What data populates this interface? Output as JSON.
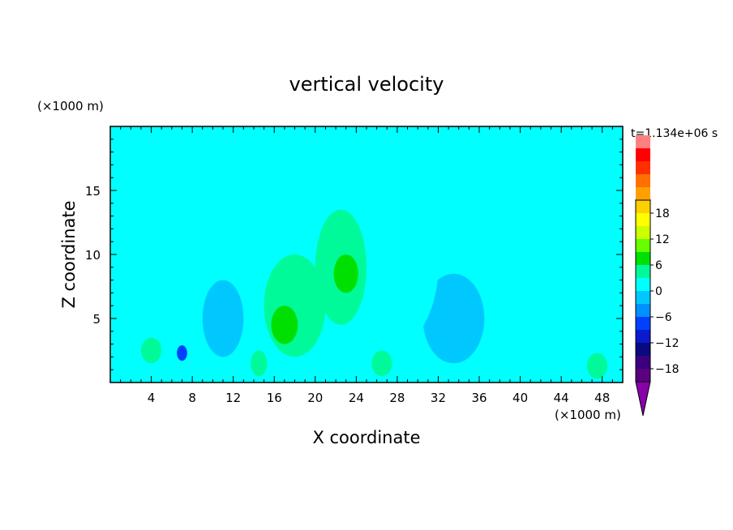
{
  "chart_data": {
    "type": "heatmap",
    "title": "vertical velocity",
    "xlabel": "X coordinate",
    "ylabel": "Z coordinate",
    "x_unit": "(×1000 m)",
    "y_unit": "(×1000 m)",
    "time_label": "t=1.134e+06 s",
    "xlim": [
      0,
      50
    ],
    "ylim": [
      0,
      20
    ],
    "x_ticks": [
      "4",
      "8",
      "12",
      "16",
      "20",
      "24",
      "28",
      "32",
      "36",
      "40",
      "44",
      "48"
    ],
    "y_ticks": [
      "5",
      "10",
      "15"
    ],
    "colorbar": {
      "tick_labels": [
        "18",
        "12",
        "6",
        "0",
        "−6",
        "−12",
        "−18"
      ],
      "tick_values": [
        18,
        12,
        6,
        0,
        -6,
        -12,
        -18
      ],
      "range": [
        -21,
        21
      ],
      "step": 3,
      "colors": [
        "#5a0080",
        "#3a0080",
        "#0a0a80",
        "#0a1acc",
        "#0040ff",
        "#0090ff",
        "#00c8ff",
        "#00ffff",
        "#00fa9a",
        "#00e000",
        "#66ff00",
        "#ccff00",
        "#ffff00",
        "#ffd000",
        "#ffa000",
        "#ff7000",
        "#ff3000",
        "#ff0000",
        "#ff8080"
      ],
      "over_color": "#f6a6a6",
      "under_color": "#8800aa"
    },
    "background_value": 0,
    "features": [
      {
        "x": 24,
        "z": 9,
        "sx": 8,
        "sz": 8,
        "value": 2
      },
      {
        "x": 18,
        "z": 6,
        "sx": 3,
        "sz": 4,
        "value": 4
      },
      {
        "x": 22.5,
        "z": 9,
        "sx": 2.5,
        "sz": 4.5,
        "value": 5
      },
      {
        "x": 17,
        "z": 4.5,
        "sx": 1.3,
        "sz": 1.5,
        "value": 7
      },
      {
        "x": 23,
        "z": 8.5,
        "sx": 1.2,
        "sz": 1.5,
        "value": 7
      },
      {
        "x": 6,
        "z": 16,
        "sx": 2.5,
        "sz": 2.5,
        "value": 1.5
      },
      {
        "x": 39,
        "z": 14.5,
        "sx": 3,
        "sz": 2.5,
        "value": 1.5
      },
      {
        "x": 3,
        "z": 4.5,
        "sx": 3,
        "sz": 2.5,
        "value": 1.5
      },
      {
        "x": 4,
        "z": 2.5,
        "sx": 1,
        "sz": 1,
        "value": 5
      },
      {
        "x": 14.5,
        "z": 1.5,
        "sx": 0.8,
        "sz": 1,
        "value": 4
      },
      {
        "x": 26.5,
        "z": 1.5,
        "sx": 1,
        "sz": 1,
        "value": 4
      },
      {
        "x": 47.5,
        "z": 1.3,
        "sx": 1,
        "sz": 1,
        "value": 3
      },
      {
        "x": 33.5,
        "z": 5,
        "sx": 3,
        "sz": 3.5,
        "value": -1.2
      },
      {
        "x": 11,
        "z": 5,
        "sx": 2,
        "sz": 3,
        "value": -0.8
      },
      {
        "x": 7,
        "z": 2.3,
        "sx": 0.5,
        "sz": 0.6,
        "value": -7
      }
    ]
  }
}
